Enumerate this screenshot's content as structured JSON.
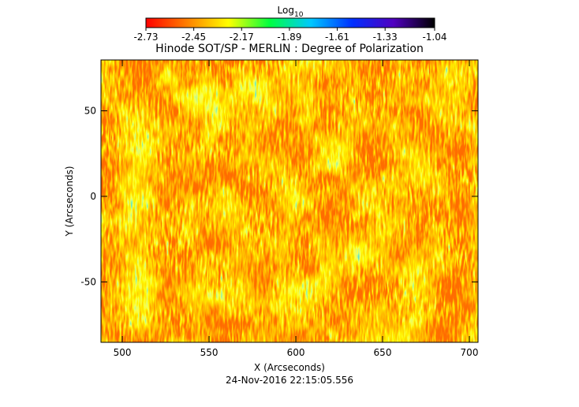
{
  "chart_data": {
    "type": "image",
    "title": "Hinode SOT/SP - MERLIN : Degree of Polarization",
    "xlabel": "X (Arcseconds)",
    "ylabel": "Y (Arcseconds)",
    "footer": "24-Nov-2016 22:15:05.556",
    "xlim": [
      487.7,
      705
    ],
    "xticks": [
      500,
      550,
      600,
      650,
      700
    ],
    "ylim": [
      -85.3,
      79.7
    ],
    "yticks": [
      -50,
      0,
      50
    ],
    "colorbar": {
      "label": "Log",
      "label_subscript": "10",
      "lim": [
        -2.73,
        -1.04
      ],
      "ticks": [
        -2.73,
        -2.45,
        -2.17,
        -1.89,
        -1.61,
        -1.33,
        -1.04
      ],
      "colors": [
        "#ff0000",
        "#ff8000",
        "#ffff00",
        "#00ff40",
        "#00c8ff",
        "#0030ff",
        "#5000c0",
        "#000000"
      ]
    }
  }
}
